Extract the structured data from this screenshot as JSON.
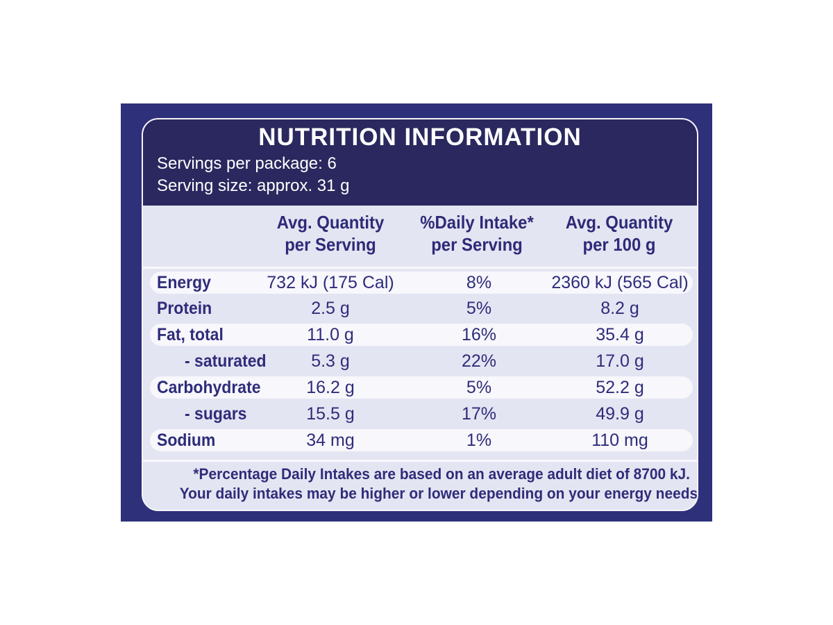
{
  "panel": {
    "title": "NUTRITION INFORMATION",
    "servings_per_package": "Servings per package: 6",
    "serving_size": "Serving size: approx. 31 g"
  },
  "columns": [
    {
      "line1": "Avg. Quantity",
      "line2": "per Serving"
    },
    {
      "line1": "%Daily Intake*",
      "line2": "per Serving"
    },
    {
      "line1": "Avg. Quantity",
      "line2": "per 100 g"
    }
  ],
  "rows": [
    {
      "name": "Energy",
      "per_serving": "732 kJ (175 Cal)",
      "daily_intake": "8%",
      "per_100g": "2360 kJ (565 Cal)"
    },
    {
      "name": "Protein",
      "per_serving": "2.5 g",
      "daily_intake": "5%",
      "per_100g": "8.2 g"
    },
    {
      "name": "Fat, total",
      "per_serving": "11.0 g",
      "daily_intake": "16%",
      "per_100g": "35.4 g"
    },
    {
      "name": "- saturated",
      "per_serving": "5.3 g",
      "daily_intake": "22%",
      "per_100g": "17.0  g"
    },
    {
      "name": "Carbohydrate",
      "per_serving": "16.2 g",
      "daily_intake": "5%",
      "per_100g": "52.2 g"
    },
    {
      "name": "- sugars",
      "per_serving": "15.5 g",
      "daily_intake": "17%",
      "per_100g": "49.9 g"
    },
    {
      "name": "Sodium",
      "per_serving": "34 mg",
      "daily_intake": "1%",
      "per_100g": "110 mg"
    }
  ],
  "footnote": {
    "line1": "*Percentage Daily Intakes are based on an average adult diet of 8700 kJ.",
    "line2": "Your daily intakes may be higher or lower depending on your energy needs."
  },
  "colors": {
    "outer_border": "#2e307a",
    "header_band": "#2a285e",
    "text": "#2f2c7a",
    "panel_background": "#e4e5f2",
    "row_band": "#f7f7fc"
  }
}
